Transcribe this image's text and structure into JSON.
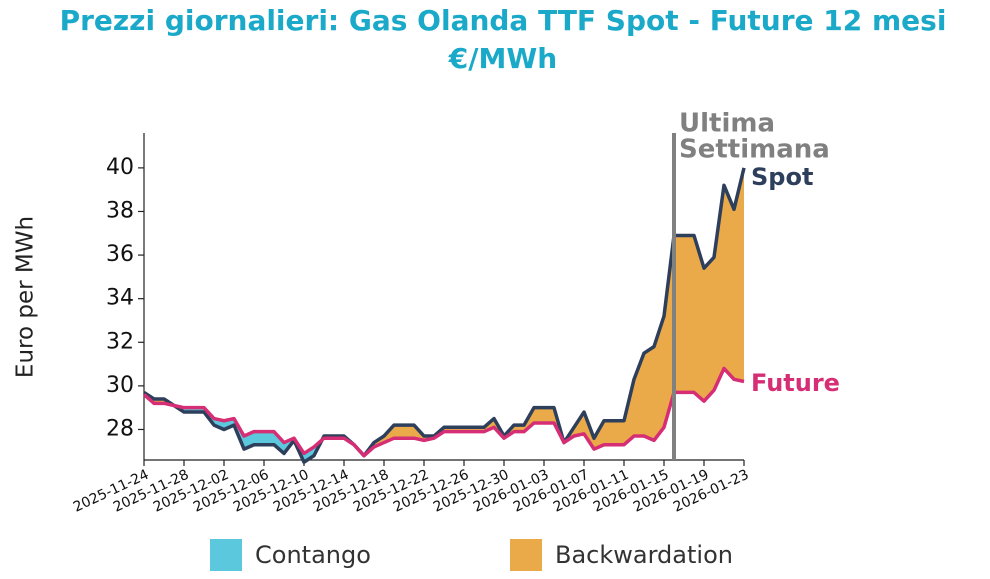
{
  "chart_data": {
    "type": "line",
    "title": "Prezzi giornalieri: Gas Olanda TTF Spot - Future 12 mesi",
    "subtitle": "€/MWh",
    "ylabel": "Euro per MWh",
    "x": [
      "2025-11-24",
      "2025-11-25",
      "2025-11-26",
      "2025-11-27",
      "2025-11-28",
      "2025-11-29",
      "2025-11-30",
      "2025-12-01",
      "2025-12-02",
      "2025-12-03",
      "2025-12-04",
      "2025-12-05",
      "2025-12-06",
      "2025-12-07",
      "2025-12-08",
      "2025-12-09",
      "2025-12-10",
      "2025-12-11",
      "2025-12-12",
      "2025-12-13",
      "2025-12-14",
      "2025-12-15",
      "2025-12-16",
      "2025-12-17",
      "2025-12-18",
      "2025-12-19",
      "2025-12-20",
      "2025-12-21",
      "2025-12-22",
      "2025-12-23",
      "2025-12-24",
      "2025-12-25",
      "2025-12-26",
      "2025-12-27",
      "2025-12-28",
      "2025-12-29",
      "2025-12-30",
      "2025-12-31",
      "2026-01-01",
      "2026-01-02",
      "2026-01-03",
      "2026-01-04",
      "2026-01-05",
      "2026-01-06",
      "2026-01-07",
      "2026-01-08",
      "2026-01-09",
      "2026-01-10",
      "2026-01-11",
      "2026-01-12",
      "2026-01-13",
      "2026-01-14",
      "2026-01-15",
      "2026-01-16",
      "2026-01-17",
      "2026-01-18",
      "2026-01-19",
      "2026-01-20",
      "2026-01-21",
      "2026-01-22",
      "2026-01-23"
    ],
    "series": [
      {
        "name": "Spot",
        "color": "#2e3f5c",
        "values": [
          29.7,
          29.4,
          29.4,
          29.1,
          28.8,
          28.8,
          28.8,
          28.2,
          28.0,
          28.2,
          27.1,
          27.3,
          27.3,
          27.3,
          26.9,
          27.5,
          26.5,
          26.8,
          27.7,
          27.7,
          27.7,
          27.3,
          26.8,
          27.4,
          27.7,
          28.2,
          28.2,
          28.2,
          27.7,
          27.7,
          28.1,
          28.1,
          28.1,
          28.1,
          28.1,
          28.5,
          27.7,
          28.2,
          28.2,
          29.0,
          29.0,
          29.0,
          27.4,
          28.1,
          28.8,
          27.6,
          28.4,
          28.4,
          28.4,
          30.3,
          31.5,
          31.8,
          33.2,
          36.9,
          36.9,
          36.9,
          35.4,
          35.9,
          39.2,
          38.1,
          40.0
        ]
      },
      {
        "name": "Future",
        "color": "#d62e75",
        "values": [
          29.6,
          29.2,
          29.2,
          29.1,
          29.0,
          29.0,
          29.0,
          28.5,
          28.4,
          28.5,
          27.7,
          27.9,
          27.9,
          27.9,
          27.4,
          27.6,
          26.9,
          27.2,
          27.6,
          27.6,
          27.6,
          27.3,
          26.8,
          27.2,
          27.4,
          27.6,
          27.6,
          27.6,
          27.5,
          27.6,
          27.9,
          27.9,
          27.9,
          27.9,
          27.9,
          28.1,
          27.6,
          27.9,
          27.9,
          28.3,
          28.3,
          28.3,
          27.4,
          27.7,
          27.8,
          27.1,
          27.3,
          27.3,
          27.3,
          27.7,
          27.7,
          27.5,
          28.1,
          29.7,
          29.7,
          29.7,
          29.3,
          29.8,
          30.8,
          30.3,
          30.2
        ]
      }
    ],
    "fill_legend": [
      {
        "name": "Contango",
        "color": "#5bc8dd"
      },
      {
        "name": "Backwardation",
        "color": "#ebaa4a"
      }
    ],
    "annotation": {
      "lines": [
        "Ultima",
        "Settimana"
      ],
      "x": "2026-01-16",
      "color": "#808080"
    },
    "xlim": [
      "2025-11-24",
      "2026-01-23"
    ],
    "xticks": [
      "2025-11-24",
      "2025-11-28",
      "2025-12-02",
      "2025-12-06",
      "2025-12-10",
      "2025-12-14",
      "2025-12-18",
      "2025-12-22",
      "2025-12-26",
      "2025-12-30",
      "2026-01-03",
      "2026-01-07",
      "2026-01-11",
      "2026-01-15",
      "2026-01-19",
      "2026-01-23"
    ],
    "ylim": [
      26.6,
      41.6
    ],
    "yticks": [
      28,
      30,
      32,
      34,
      36,
      38,
      40
    ],
    "grid": false
  }
}
